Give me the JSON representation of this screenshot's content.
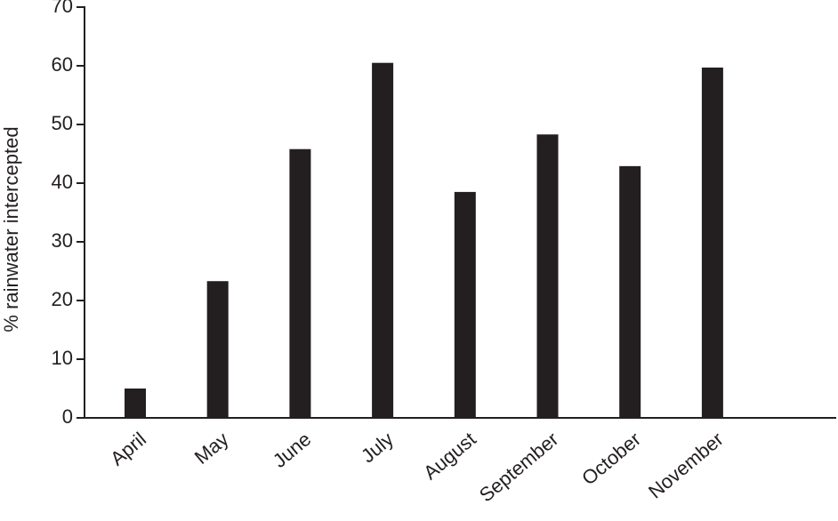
{
  "chart_data": {
    "type": "bar",
    "y_label": "% rainwater intercepted",
    "categories": [
      "April",
      "May",
      "June",
      "July",
      "August",
      "September",
      "October",
      "November"
    ],
    "values": [
      5.0,
      23.3,
      45.8,
      60.5,
      38.5,
      48.3,
      42.9,
      59.7
    ],
    "color": "#231f20",
    "ylim": [
      0,
      70
    ],
    "yticks": [
      0,
      10,
      20,
      30,
      40,
      50,
      60,
      70
    ],
    "grid": false
  }
}
